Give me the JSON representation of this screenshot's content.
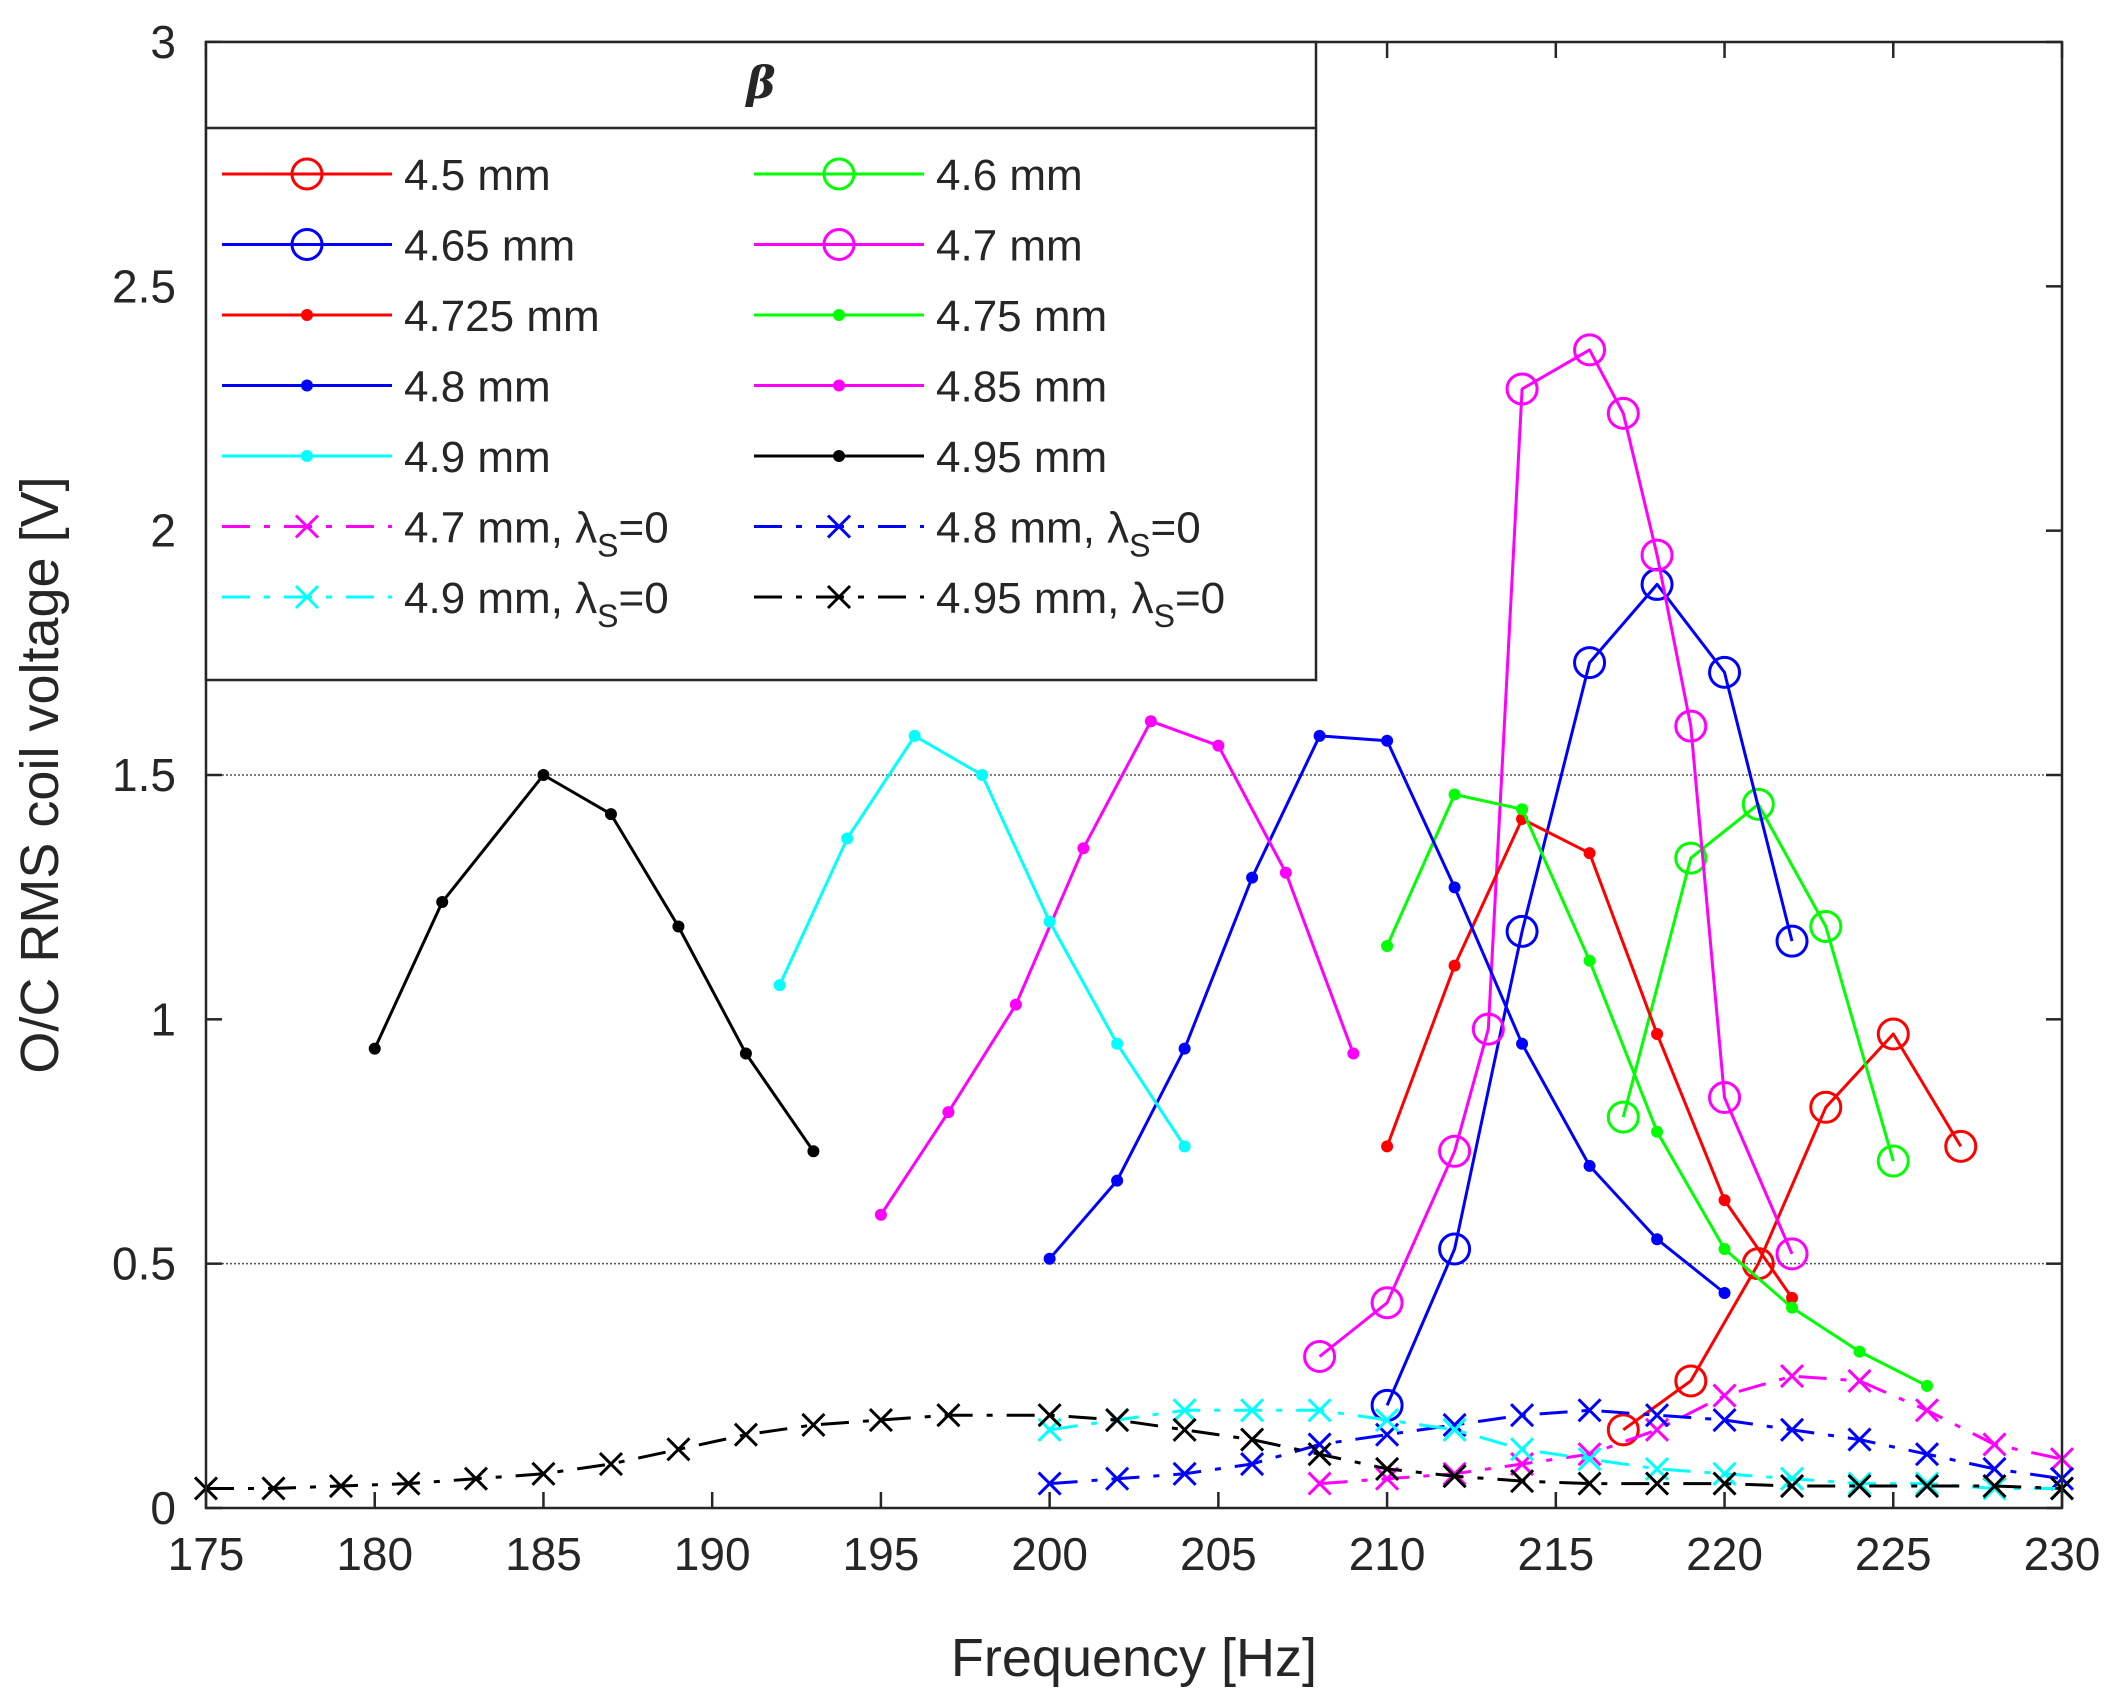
{
  "chart_data": {
    "type": "line",
    "xlabel": "Frequency [Hz]",
    "ylabel": "O/C RMS coil voltage [V]",
    "xlim": [
      175,
      230
    ],
    "ylim": [
      0,
      3
    ],
    "xticks": [
      175,
      180,
      185,
      190,
      195,
      200,
      205,
      210,
      215,
      220,
      225,
      230
    ],
    "yticks": [
      0,
      0.5,
      1,
      1.5,
      2,
      2.5,
      3
    ],
    "ytick_labels": [
      "0",
      "0.5",
      "1",
      "1.5",
      "2",
      "2.5",
      "3"
    ],
    "hgrid": [
      0.5,
      1.5
    ],
    "legend": {
      "title": "β",
      "placement": "top-left",
      "columns": 2
    },
    "series": [
      {
        "name": "4.5 mm",
        "color": "#ff0000",
        "marker": "circle",
        "dash": "solid",
        "x": [
          217,
          219,
          221,
          223,
          225,
          227
        ],
        "y": [
          0.16,
          0.26,
          0.5,
          0.82,
          0.97,
          0.74
        ]
      },
      {
        "name": "4.6 mm",
        "color": "#00ff00",
        "marker": "circle",
        "dash": "solid",
        "x": [
          217,
          219,
          221,
          223,
          225
        ],
        "y": [
          0.8,
          1.33,
          1.44,
          1.19,
          0.71
        ]
      },
      {
        "name": "4.65 mm",
        "color": "#0000ff",
        "marker": "circle",
        "dash": "solid",
        "x": [
          210,
          212,
          214,
          216,
          218,
          220,
          222
        ],
        "y": [
          0.21,
          0.53,
          1.18,
          1.73,
          1.89,
          1.71,
          1.16
        ]
      },
      {
        "name": "4.7 mm",
        "color": "#ff00ff",
        "marker": "circle",
        "dash": "solid",
        "x": [
          208,
          210,
          212,
          213,
          214,
          216,
          217,
          218,
          219,
          220,
          222
        ],
        "y": [
          0.31,
          0.42,
          0.73,
          0.98,
          2.29,
          2.37,
          2.24,
          1.95,
          1.6,
          0.84,
          0.52
        ]
      },
      {
        "name": "4.725 mm",
        "color": "#ff0000",
        "marker": "dot",
        "dash": "solid",
        "x": [
          210,
          212,
          214,
          216,
          218,
          220,
          222
        ],
        "y": [
          0.74,
          1.11,
          1.41,
          1.34,
          0.97,
          0.63,
          0.43
        ]
      },
      {
        "name": "4.75 mm",
        "color": "#00ff00",
        "marker": "dot",
        "dash": "solid",
        "x": [
          210,
          212,
          214,
          216,
          218,
          220,
          222,
          224,
          226
        ],
        "y": [
          1.15,
          1.46,
          1.43,
          1.12,
          0.77,
          0.53,
          0.41,
          0.32,
          0.25
        ]
      },
      {
        "name": "4.8 mm",
        "color": "#0000ff",
        "marker": "dot",
        "dash": "solid",
        "x": [
          200,
          202,
          204,
          206,
          208,
          210,
          212,
          214,
          216,
          218,
          220
        ],
        "y": [
          0.51,
          0.67,
          0.94,
          1.29,
          1.58,
          1.57,
          1.27,
          0.95,
          0.7,
          0.55,
          0.44
        ]
      },
      {
        "name": "4.85 mm",
        "color": "#ff00ff",
        "marker": "dot",
        "dash": "solid",
        "x": [
          195,
          197,
          199,
          201,
          203,
          205,
          207,
          209
        ],
        "y": [
          0.6,
          0.81,
          1.03,
          1.35,
          1.61,
          1.56,
          1.3,
          0.93
        ]
      },
      {
        "name": "4.9 mm",
        "color": "#00ffff",
        "marker": "dot",
        "dash": "solid",
        "x": [
          192,
          194,
          196,
          198,
          200,
          202,
          204
        ],
        "y": [
          1.07,
          1.37,
          1.58,
          1.5,
          1.2,
          0.95,
          0.74
        ]
      },
      {
        "name": "4.95 mm",
        "color": "#000000",
        "marker": "dot",
        "dash": "solid",
        "x": [
          180,
          182,
          185,
          187,
          189,
          191,
          193
        ],
        "y": [
          0.94,
          1.24,
          1.5,
          1.42,
          1.19,
          0.93,
          0.73
        ]
      },
      {
        "name": "4.7 mm, λS=0",
        "label_main": "4.7 mm, λ",
        "label_sub": "S",
        "label_tail": "=0",
        "color": "#ff00ff",
        "marker": "x",
        "dash": "dashdot",
        "x": [
          208,
          210,
          212,
          214,
          216,
          218,
          220,
          222,
          224,
          226,
          228,
          230
        ],
        "y": [
          0.05,
          0.06,
          0.07,
          0.09,
          0.11,
          0.16,
          0.23,
          0.27,
          0.26,
          0.2,
          0.13,
          0.1
        ]
      },
      {
        "name": "4.8 mm, λS=0",
        "label_main": "4.8 mm, λ",
        "label_sub": "S",
        "label_tail": "=0",
        "color": "#0000ff",
        "marker": "x",
        "dash": "dashdot",
        "x": [
          200,
          202,
          204,
          206,
          208,
          210,
          212,
          214,
          216,
          218,
          220,
          222,
          224,
          226,
          228,
          230
        ],
        "y": [
          0.05,
          0.06,
          0.07,
          0.09,
          0.13,
          0.15,
          0.17,
          0.19,
          0.2,
          0.19,
          0.18,
          0.16,
          0.14,
          0.11,
          0.08,
          0.06
        ]
      },
      {
        "name": "4.9 mm, λS=0",
        "label_main": "4.9 mm, λ",
        "label_sub": "S",
        "label_tail": "=0",
        "color": "#00ffff",
        "marker": "x",
        "dash": "dashdot",
        "x": [
          200,
          202,
          204,
          206,
          208,
          210,
          212,
          214,
          216,
          218,
          220,
          222,
          224,
          226,
          228,
          230
        ],
        "y": [
          0.16,
          0.18,
          0.2,
          0.2,
          0.2,
          0.18,
          0.16,
          0.12,
          0.1,
          0.08,
          0.07,
          0.06,
          0.05,
          0.05,
          0.04,
          0.04
        ]
      },
      {
        "name": "4.95 mm, λS=0",
        "label_main": "4.95 mm, λ",
        "label_sub": "S",
        "label_tail": "=0",
        "color": "#000000",
        "marker": "x",
        "dash": "dashdot",
        "x": [
          175,
          177,
          179,
          181,
          183,
          185,
          187,
          189,
          191,
          193,
          195,
          197,
          200,
          202,
          204,
          206,
          208,
          210,
          212,
          214,
          216,
          218,
          220,
          222,
          224,
          226,
          228,
          230
        ],
        "y": [
          0.04,
          0.04,
          0.045,
          0.05,
          0.06,
          0.07,
          0.09,
          0.12,
          0.15,
          0.17,
          0.18,
          0.19,
          0.19,
          0.18,
          0.16,
          0.14,
          0.11,
          0.08,
          0.065,
          0.055,
          0.05,
          0.05,
          0.05,
          0.045,
          0.045,
          0.045,
          0.045,
          0.04
        ]
      }
    ]
  }
}
